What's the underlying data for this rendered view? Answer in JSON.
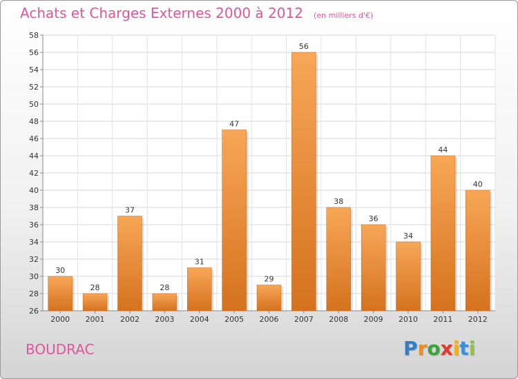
{
  "chart_data": {
    "type": "bar",
    "title": "Achats et Charges Externes 2000 à 2012",
    "subtitle": "(en milliers d'€)",
    "categories": [
      "2000",
      "2001",
      "2002",
      "2003",
      "2004",
      "2005",
      "2006",
      "2007",
      "2008",
      "2009",
      "2010",
      "2011",
      "2012"
    ],
    "values": [
      30,
      28,
      37,
      28,
      31,
      47,
      29,
      56,
      38,
      36,
      34,
      44,
      40
    ],
    "ylim": [
      26,
      58
    ],
    "yticks": [
      26,
      28,
      30,
      32,
      34,
      36,
      38,
      40,
      42,
      44,
      46,
      48,
      50,
      52,
      54,
      56,
      58
    ],
    "grid": true,
    "bar_color_top": "#f7a757",
    "bar_color_bottom": "#d4721f"
  },
  "place_name": "BOUDRAC",
  "logo": {
    "letters": [
      "P",
      "r",
      "o",
      "x",
      "i",
      "t",
      "i"
    ],
    "colors": [
      "#2f7fc6",
      "#f28c1a",
      "#3ca33c",
      "#e23a2a",
      "#f2b01a",
      "#3b8fd6",
      "#8cc63c"
    ]
  }
}
